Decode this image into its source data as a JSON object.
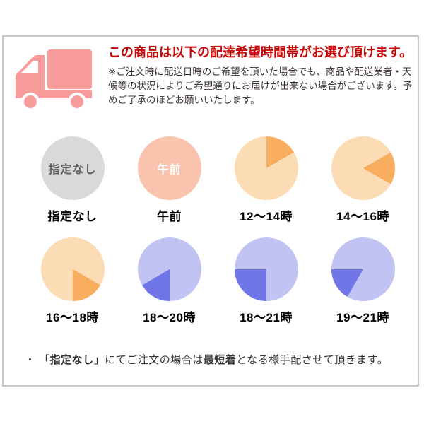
{
  "header": {
    "title": "この商品は以下の配達希望時間帯がお選び頂けます。",
    "title_color": "#c40808",
    "note": "※ご注文時に配送日時のご希望を頂いた場合でも、商品や配送業者・天候等の状況によりご希望通りにお届けが出来ない場合がございます。予めご了承のほどお願いいたします。",
    "truck_icon": "delivery-truck-icon",
    "truck_color": "#f89b9b"
  },
  "time_slots": [
    {
      "label": "指定なし",
      "inner_text": "指定なし",
      "inner_text_color": "#5f5f5f",
      "base_color": "#d9d9d9",
      "wedge": null
    },
    {
      "label": "午前",
      "inner_text": "午前",
      "inner_text_color": "#ffffff",
      "base_color": "#f9c3ae",
      "wedge": null
    },
    {
      "label": "12〜14時",
      "inner_text": "",
      "base_color": "#fcdcb4",
      "wedge": {
        "from": 0,
        "to": 60,
        "color": "#f8ad5f"
      }
    },
    {
      "label": "14〜16時",
      "inner_text": "",
      "base_color": "#fcdcb4",
      "wedge": {
        "from": 60,
        "to": 120,
        "color": "#f8ad5f"
      }
    },
    {
      "label": "16〜18時",
      "inner_text": "",
      "base_color": "#fcdcb4",
      "wedge": {
        "from": 120,
        "to": 180,
        "color": "#f8ad5f"
      }
    },
    {
      "label": "18〜20時",
      "inner_text": "",
      "base_color": "#c1c4f3",
      "wedge": {
        "from": 180,
        "to": 240,
        "color": "#7076e7"
      }
    },
    {
      "label": "18〜21時",
      "inner_text": "",
      "base_color": "#c1c4f3",
      "wedge": {
        "from": 180,
        "to": 270,
        "color": "#7076e7"
      }
    },
    {
      "label": "19〜21時",
      "inner_text": "",
      "base_color": "#c1c4f3",
      "wedge": {
        "from": 210,
        "to": 270,
        "color": "#7076e7"
      }
    }
  ],
  "footer_note": {
    "parts": [
      {
        "text": "・ 「",
        "bold": false
      },
      {
        "text": "指定なし",
        "bold": true
      },
      {
        "text": "」にてご注文の場合は",
        "bold": false
      },
      {
        "text": "最短着",
        "bold": true
      },
      {
        "text": "となる様手配させて頂きます。",
        "bold": false
      }
    ]
  }
}
